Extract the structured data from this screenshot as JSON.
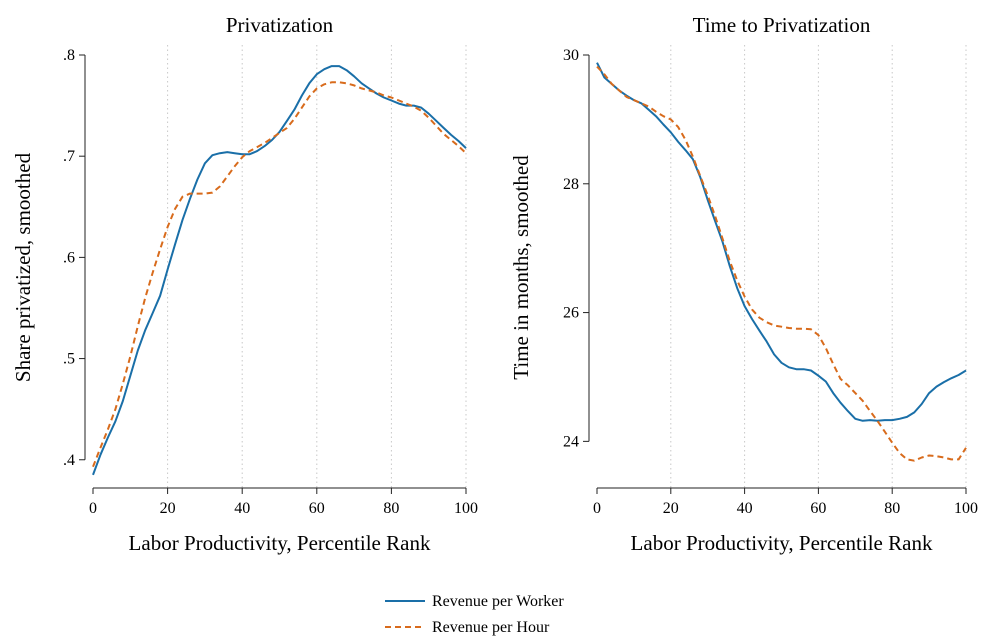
{
  "colors": {
    "series1": "#1a6fa8",
    "series2": "#d86b1c"
  },
  "legend": {
    "position": "bottom-center",
    "items": [
      {
        "label": "Revenue per Worker",
        "color": "#1a6fa8",
        "dash": "solid"
      },
      {
        "label": "Revenue per Hour",
        "color": "#d86b1c",
        "dash": "dashed"
      }
    ]
  },
  "chart_data": [
    {
      "type": "line",
      "title": "Privatization",
      "xlabel": "Labor Productivity, Percentile Rank",
      "ylabel": "Share privatized, smoothed",
      "xlim": [
        0,
        100
      ],
      "ylim": [
        0.38,
        0.8
      ],
      "xticks": [
        0,
        20,
        40,
        60,
        80,
        100
      ],
      "xtick_labels": [
        "0",
        "20",
        "40",
        "60",
        "80",
        "100"
      ],
      "yticks": [
        0.4,
        0.5,
        0.6,
        0.7,
        0.8
      ],
      "ytick_labels": [
        ".4",
        ".5",
        ".6",
        ".7",
        ".8"
      ],
      "grid": "vertical-dotted",
      "series": [
        {
          "name": "Revenue per Worker",
          "x": [
            0,
            2,
            4,
            6,
            8,
            10,
            12,
            14,
            16,
            18,
            20,
            22,
            24,
            26,
            28,
            30,
            32,
            34,
            36,
            38,
            40,
            42,
            44,
            46,
            48,
            50,
            52,
            54,
            56,
            58,
            60,
            62,
            64,
            66,
            68,
            70,
            72,
            74,
            76,
            78,
            80,
            82,
            84,
            86,
            88,
            90,
            92,
            94,
            96,
            98,
            100
          ],
          "y": [
            0.385,
            0.405,
            0.422,
            0.438,
            0.458,
            0.483,
            0.508,
            0.528,
            0.545,
            0.562,
            0.588,
            0.613,
            0.637,
            0.658,
            0.677,
            0.693,
            0.701,
            0.703,
            0.704,
            0.703,
            0.702,
            0.702,
            0.705,
            0.71,
            0.716,
            0.724,
            0.735,
            0.746,
            0.76,
            0.772,
            0.781,
            0.786,
            0.789,
            0.789,
            0.785,
            0.779,
            0.772,
            0.767,
            0.762,
            0.758,
            0.755,
            0.752,
            0.75,
            0.75,
            0.748,
            0.742,
            0.735,
            0.728,
            0.721,
            0.715,
            0.708
          ]
        },
        {
          "name": "Revenue per Hour",
          "x": [
            0,
            2,
            4,
            6,
            8,
            10,
            12,
            14,
            16,
            18,
            20,
            22,
            24,
            26,
            28,
            30,
            32,
            34,
            36,
            38,
            40,
            42,
            44,
            46,
            48,
            50,
            52,
            54,
            56,
            58,
            60,
            62,
            64,
            66,
            68,
            70,
            72,
            74,
            76,
            78,
            80,
            82,
            84,
            86,
            88,
            90,
            92,
            94,
            96,
            98,
            100
          ],
          "y": [
            0.393,
            0.412,
            0.43,
            0.45,
            0.475,
            0.502,
            0.532,
            0.56,
            0.585,
            0.608,
            0.63,
            0.648,
            0.66,
            0.663,
            0.663,
            0.663,
            0.664,
            0.67,
            0.68,
            0.69,
            0.699,
            0.705,
            0.709,
            0.713,
            0.718,
            0.723,
            0.728,
            0.737,
            0.748,
            0.759,
            0.767,
            0.771,
            0.773,
            0.773,
            0.772,
            0.77,
            0.767,
            0.765,
            0.763,
            0.76,
            0.758,
            0.755,
            0.752,
            0.749,
            0.745,
            0.738,
            0.73,
            0.722,
            0.716,
            0.71,
            0.703
          ]
        }
      ]
    },
    {
      "type": "line",
      "title": "Time to Privatization",
      "xlabel": "Labor Productivity, Percentile Rank",
      "ylabel": "Time in months, smoothed",
      "xlim": [
        0,
        100
      ],
      "ylim": [
        23.4,
        30.0
      ],
      "xticks": [
        0,
        20,
        40,
        60,
        80,
        100
      ],
      "xtick_labels": [
        "0",
        "20",
        "40",
        "60",
        "80",
        "100"
      ],
      "yticks": [
        24,
        26,
        28,
        30
      ],
      "ytick_labels": [
        "24",
        "26",
        "28",
        "30"
      ],
      "grid": "vertical-dotted",
      "series": [
        {
          "name": "Revenue per Worker",
          "x": [
            0,
            2,
            4,
            6,
            8,
            10,
            12,
            14,
            16,
            18,
            20,
            22,
            24,
            26,
            28,
            30,
            32,
            34,
            36,
            38,
            40,
            42,
            44,
            46,
            48,
            50,
            52,
            54,
            56,
            58,
            60,
            62,
            64,
            66,
            68,
            70,
            72,
            74,
            76,
            78,
            80,
            82,
            84,
            86,
            88,
            90,
            92,
            94,
            96,
            98,
            100
          ],
          "y": [
            29.88,
            29.65,
            29.55,
            29.45,
            29.37,
            29.3,
            29.25,
            29.15,
            29.05,
            28.92,
            28.8,
            28.65,
            28.52,
            28.38,
            28.1,
            27.75,
            27.42,
            27.1,
            26.72,
            26.38,
            26.1,
            25.9,
            25.72,
            25.55,
            25.35,
            25.22,
            25.15,
            25.12,
            25.12,
            25.1,
            25.02,
            24.93,
            24.75,
            24.6,
            24.47,
            24.35,
            24.32,
            24.33,
            24.32,
            24.33,
            24.33,
            24.35,
            24.38,
            24.45,
            24.58,
            24.75,
            24.85,
            24.92,
            24.98,
            25.03,
            25.1
          ]
        },
        {
          "name": "Revenue per Hour",
          "x": [
            0,
            2,
            4,
            6,
            8,
            10,
            12,
            14,
            16,
            18,
            20,
            22,
            24,
            26,
            28,
            30,
            32,
            34,
            36,
            38,
            40,
            42,
            44,
            46,
            48,
            50,
            52,
            54,
            56,
            58,
            60,
            62,
            64,
            66,
            68,
            70,
            72,
            74,
            76,
            78,
            80,
            82,
            84,
            86,
            88,
            90,
            92,
            94,
            96,
            98,
            100
          ],
          "y": [
            29.82,
            29.7,
            29.55,
            29.45,
            29.35,
            29.3,
            29.25,
            29.2,
            29.12,
            29.05,
            29.0,
            28.88,
            28.68,
            28.42,
            28.12,
            27.82,
            27.5,
            27.15,
            26.8,
            26.5,
            26.25,
            26.05,
            25.92,
            25.85,
            25.8,
            25.78,
            25.76,
            25.75,
            25.75,
            25.74,
            25.65,
            25.45,
            25.2,
            24.97,
            24.87,
            24.75,
            24.63,
            24.47,
            24.32,
            24.15,
            23.98,
            23.82,
            23.72,
            23.7,
            23.75,
            23.78,
            23.77,
            23.75,
            23.72,
            23.72,
            23.9
          ]
        }
      ]
    }
  ]
}
